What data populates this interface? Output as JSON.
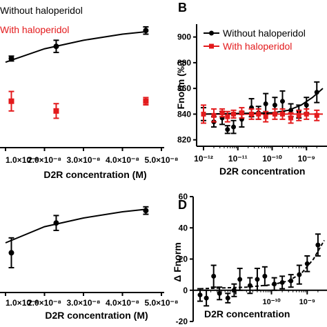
{
  "panels": [
    {
      "id": "A",
      "letter": "",
      "legend": [
        {
          "label": "Without haloperidol",
          "color": "#000000"
        },
        {
          "label": "With haloperidol",
          "color": "#e31a1c"
        }
      ],
      "xlabel": "D2R concentration (M)",
      "ylabel": "",
      "xticks": [
        "1.0×10⁻⁸",
        "2.0×10⁻⁸",
        "3.0×10⁻⁸",
        "4.0×10⁻⁸",
        "5.0×10⁻⁸"
      ]
    },
    {
      "id": "B",
      "letter": "B",
      "legend": [
        {
          "label": "Without haloperidol",
          "color": "#000000"
        },
        {
          "label": "With haloperidol",
          "color": "#e31a1c"
        }
      ],
      "xlabel": "D2R concentration",
      "ylabel": "Fnorm (‰)",
      "yticks": [
        "820",
        "840",
        "860",
        "880",
        "900"
      ],
      "xticks": [
        "10⁻¹²",
        "10⁻¹¹",
        "10⁻¹⁰",
        "10⁻⁹"
      ]
    },
    {
      "id": "C",
      "letter": "",
      "xlabel": "D2R concentration (M)",
      "ylabel": "",
      "xticks": [
        "1.0×10⁻⁸",
        "2.0×10⁻⁸",
        "3.0×10⁻⁸",
        "4.0×10⁻⁸",
        "5.0×10⁻⁸"
      ]
    },
    {
      "id": "D",
      "letter": "D",
      "xlabel": "D2R concentration",
      "ylabel": "Δ Fnorm",
      "yticks": [
        "-20",
        "0",
        "20",
        "40",
        "60"
      ],
      "xticks": [
        "10⁻¹⁰",
        "10⁻⁹"
      ]
    }
  ],
  "chart_data": [
    {
      "panel": "A",
      "type": "scatter",
      "x_scale": "linear",
      "xlim": [
        1e-08,
        5e-08
      ],
      "series": [
        {
          "name": "Without haloperidol",
          "color": "#000000",
          "x": [
            1.15e-08,
            2.3e-08,
            4.6e-08
          ],
          "y": [
            858,
            868,
            881
          ],
          "err": [
            2,
            5,
            3
          ]
        },
        {
          "name": "With haloperidol",
          "color": "#e31a1c",
          "x": [
            1.15e-08,
            2.3e-08,
            4.6e-08
          ],
          "y": [
            823,
            815,
            823
          ],
          "err": [
            8,
            6,
            3
          ]
        }
      ],
      "fit": [
        [
          1e-08,
          855
        ],
        [
          2e-08,
          866
        ],
        [
          3e-08,
          873
        ],
        [
          4e-08,
          878
        ],
        [
          4.6e-08,
          880
        ]
      ]
    },
    {
      "panel": "B",
      "type": "scatter",
      "x_scale": "log",
      "xlim": [
        1e-12,
        3e-09
      ],
      "ylim": [
        815,
        910
      ],
      "series": [
        {
          "name": "Without haloperidol",
          "color": "#000000",
          "x": [
            1e-12,
            2e-12,
            3.5e-12,
            5e-12,
            7.5e-12,
            1.3e-11,
            2.5e-11,
            4e-11,
            6.5e-11,
            1.2e-10,
            2e-10,
            3.5e-10,
            6e-10,
            1e-09,
            2e-09
          ],
          "y": [
            840,
            834,
            837,
            828,
            830,
            836,
            845,
            841,
            848,
            847,
            850,
            843,
            842,
            847,
            857
          ],
          "err": [
            5,
            4,
            5,
            3,
            5,
            6,
            7,
            5,
            8,
            6,
            8,
            5,
            5,
            6,
            8
          ]
        },
        {
          "name": "With haloperidol",
          "color": "#e31a1c",
          "x": [
            1e-12,
            2e-12,
            3.5e-12,
            5e-12,
            7.5e-12,
            1.3e-11,
            2.5e-11,
            4e-11,
            6.5e-11,
            1.2e-10,
            2e-10,
            3.5e-10,
            6e-10,
            1e-09,
            2e-09
          ],
          "y": [
            840,
            839,
            841,
            838,
            840,
            841,
            840,
            840,
            838,
            840,
            840,
            837,
            839,
            840,
            839
          ],
          "err": [
            7,
            5,
            3,
            4,
            3,
            4,
            4,
            4,
            4,
            4,
            4,
            4,
            4,
            4,
            4
          ]
        }
      ],
      "fit_black": [
        [
          1e-12,
          840
        ],
        [
          1e-10,
          841
        ],
        [
          3e-10,
          843
        ],
        [
          7e-10,
          847
        ],
        [
          1.5e-09,
          853
        ],
        [
          3e-09,
          860
        ]
      ],
      "fit_red": [
        [
          1e-12,
          840
        ],
        [
          3e-09,
          840
        ]
      ]
    },
    {
      "panel": "C",
      "type": "scatter",
      "x_scale": "linear",
      "xlim": [
        1e-08,
        5e-08
      ],
      "series": [
        {
          "name": "",
          "color": "#000000",
          "x": [
            1.15e-08,
            2.3e-08,
            4.6e-08
          ],
          "y": [
            16,
            28,
            33
          ],
          "err": [
            6,
            3,
            1.5
          ]
        }
      ],
      "fit": [
        [
          1e-08,
          20
        ],
        [
          2e-08,
          26.5
        ],
        [
          3e-08,
          30
        ],
        [
          4e-08,
          32.5
        ],
        [
          4.6e-08,
          33.5
        ]
      ]
    },
    {
      "panel": "D",
      "type": "scatter",
      "x_scale": "log",
      "xlim": [
        1e-12,
        3e-09
      ],
      "ylim": [
        -20,
        60
      ],
      "series": [
        {
          "name": "",
          "color": "#000000",
          "x": [
            1e-12,
            1.5e-12,
            2.4e-12,
            3.5e-12,
            6e-12,
            9e-12,
            1.3e-11,
            2.5e-11,
            4e-11,
            6.5e-11,
            1.2e-10,
            2e-10,
            3.5e-10,
            6e-10,
            1e-09,
            2e-09
          ],
          "y": [
            -3,
            -5,
            9,
            -2,
            -5,
            0,
            7,
            3,
            7,
            9,
            4,
            5,
            6,
            10,
            17,
            29
          ],
          "err": [
            4,
            5,
            7,
            4,
            3,
            4,
            7,
            5,
            7,
            6,
            4,
            4,
            4,
            6,
            5,
            7
          ]
        }
      ],
      "fit": [
        [
          1e-12,
          1
        ],
        [
          2e-11,
          2
        ],
        [
          1e-10,
          3.5
        ],
        [
          3e-10,
          6
        ],
        [
          7e-10,
          11
        ],
        [
          1.5e-09,
          20
        ],
        [
          3e-09,
          32
        ]
      ]
    }
  ]
}
